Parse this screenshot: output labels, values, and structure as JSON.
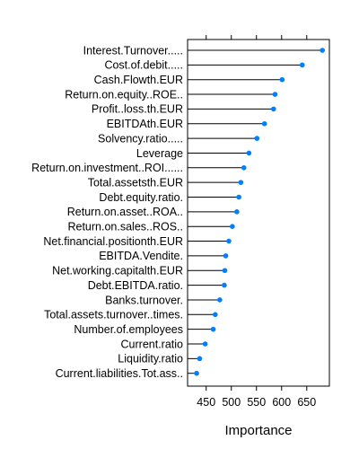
{
  "chart_data": {
    "type": "dot",
    "xlabel": "Importance",
    "xlim": [
      413,
      695
    ],
    "xticks": [
      450,
      500,
      550,
      600,
      650
    ],
    "colors": {
      "point": "#0080ff",
      "line": "#000000",
      "frame": "#000000"
    },
    "categories": [
      "Interest.Turnover.....",
      "Cost.of.debit.....",
      "Cash.Flowth.EUR",
      "Return.on.equity..ROE..",
      "Profit..loss.th.EUR",
      "EBITDAth.EUR",
      "Solvency.ratio.....",
      "Leverage",
      "Return.on.investment..ROI......",
      "Total.assetsth.EUR",
      "Debt.equity.ratio.",
      "Return.on.asset..ROA..",
      "Return.on.sales..ROS..",
      "Net.financial.positionth.EUR",
      "EBITDA.Vendite.",
      "Net.working.capitalth.EUR",
      "Debt.EBITDA.ratio.",
      "Banks.turnover.",
      "Total.assets.turnover..times.",
      "Number.of.employees",
      "Current.ratio",
      "Liquidity.ratio",
      "Current.liabilities.Tot.ass.."
    ],
    "values": [
      681,
      641,
      601,
      587,
      584,
      566,
      551,
      535,
      525,
      519,
      515,
      511,
      502,
      495,
      489,
      487,
      486,
      477,
      468,
      464,
      448,
      437,
      431
    ]
  }
}
